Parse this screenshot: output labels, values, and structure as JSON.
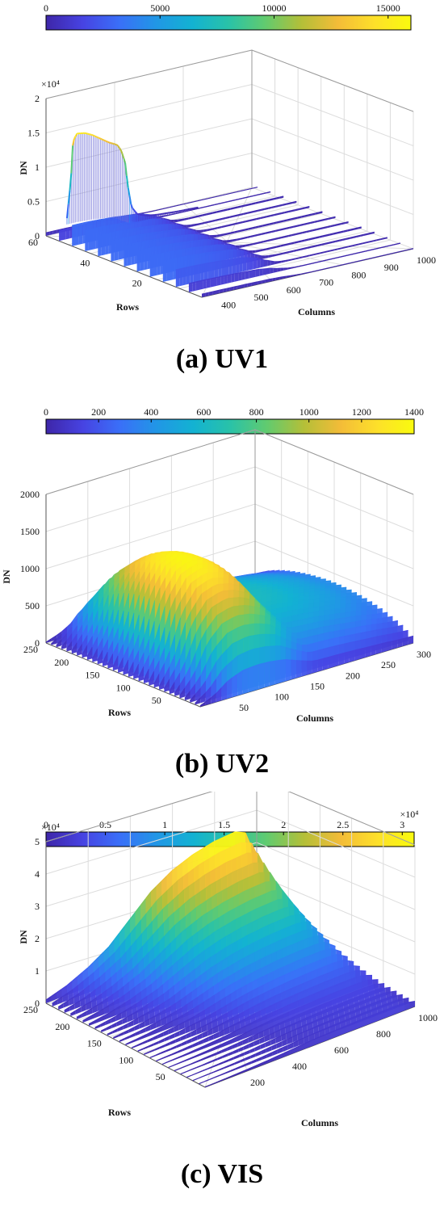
{
  "colors": {
    "colormap": [
      "#3e26a8",
      "#4743e2",
      "#3a6ff8",
      "#2196e6",
      "#13b2d2",
      "#29c2a8",
      "#61cb6f",
      "#b4bf38",
      "#f3bc38",
      "#fde02a",
      "#f9fb0e"
    ],
    "grid": "#dcdcdc"
  },
  "chart_data": [
    {
      "type": "surface",
      "caption": "(a) UV1",
      "colorbar": {
        "ticks": [
          "0",
          "5000",
          "10000",
          "15000"
        ],
        "range": [
          0,
          16000
        ],
        "exponent": ""
      },
      "zlabel": "DN",
      "z_exponent": "×10⁴",
      "zticks": [
        "0",
        "0.5",
        "1",
        "1.5",
        "2"
      ],
      "zlim": [
        0,
        20000
      ],
      "xlabel": "Columns",
      "xticks": [
        "400",
        "500",
        "600",
        "700",
        "800",
        "900",
        "1000"
      ],
      "xlim": [
        350,
        1000
      ],
      "ylabel": "Rows",
      "yticks": [
        "20",
        "40",
        "60"
      ],
      "ylim": [
        0,
        60
      ],
      "profile": {
        "x": [
          350,
          370,
          380,
          400,
          440,
          480,
          520,
          560,
          600,
          620,
          640,
          650,
          670,
          700,
          750,
          800,
          900,
          1000
        ],
        "peak": [
          3000,
          8500,
          14000,
          15000,
          14800,
          14200,
          13400,
          12600,
          12000,
          11000,
          9000,
          6000,
          2500,
          1200,
          700,
          500,
          300,
          200
        ],
        "base": [
          3000,
          3000,
          3000,
          3000,
          2900,
          2800,
          2600,
          2400,
          1800,
          1200,
          800,
          500,
          300,
          200,
          200,
          200,
          200,
          200
        ]
      }
    },
    {
      "type": "surface",
      "caption": "(b) UV2",
      "colorbar": {
        "ticks": [
          "0",
          "200",
          "400",
          "600",
          "800",
          "1000",
          "1200",
          "1400"
        ],
        "range": [
          0,
          1400
        ],
        "exponent": ""
      },
      "zlabel": "DN",
      "zticks": [
        "0",
        "500",
        "1000",
        "1500",
        "2000"
      ],
      "zlim": [
        0,
        2000
      ],
      "xlabel": "Columns",
      "xticks": [
        "50",
        "100",
        "150",
        "200",
        "250",
        "300"
      ],
      "xlim": [
        0,
        300
      ],
      "ylabel": "Rows",
      "yticks": [
        "50",
        "100",
        "150",
        "200",
        "250"
      ],
      "ylim": [
        0,
        250
      ],
      "profile": {
        "x": [
          0,
          20,
          40,
          60,
          80,
          100,
          120,
          140,
          160,
          180,
          200,
          220,
          240,
          260,
          280,
          300
        ],
        "amplitude": [
          50,
          400,
          1000,
          1300,
          1380,
          1330,
          1200,
          900,
          640,
          620,
          600,
          560,
          520,
          480,
          420,
          380
        ]
      }
    },
    {
      "type": "surface",
      "caption": "(c) VIS",
      "colorbar": {
        "ticks": [
          "0",
          "0.5",
          "1",
          "1.5",
          "2",
          "2.5",
          "3"
        ],
        "range": [
          0,
          31000
        ],
        "exponent": "×10⁴"
      },
      "zlabel": "DN",
      "z_exponent": "×10⁴",
      "zticks": [
        "0",
        "1",
        "2",
        "3",
        "4",
        "5"
      ],
      "zlim": [
        0,
        50000
      ],
      "xlabel": "Columns",
      "xticks": [
        "200",
        "400",
        "600",
        "800",
        "1000"
      ],
      "xlim": [
        0,
        1000
      ],
      "ylabel": "Rows",
      "yticks": [
        "50",
        "100",
        "150",
        "200",
        "250"
      ],
      "ylim": [
        0,
        250
      ],
      "profile": {
        "x": [
          0,
          100,
          200,
          300,
          400,
          500,
          600,
          700,
          800,
          900,
          950,
          1000
        ],
        "amplitude": [
          1000,
          3000,
          6000,
          10000,
          16000,
          22000,
          26000,
          28500,
          30000,
          30500,
          29000,
          20000
        ]
      }
    }
  ]
}
